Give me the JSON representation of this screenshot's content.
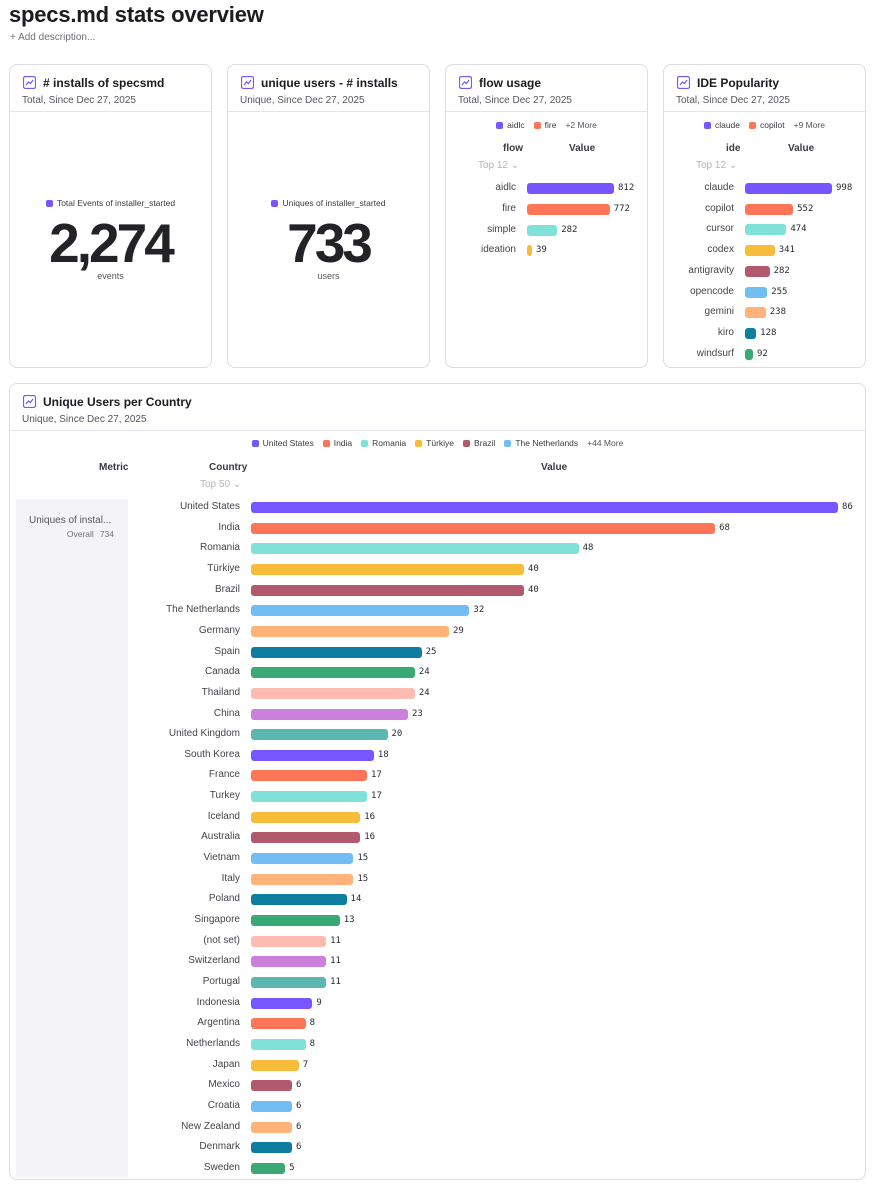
{
  "page": {
    "title": "specs.md stats overview",
    "add_description": "+ Add description..."
  },
  "colors": [
    "#7856ff",
    "#ff7557",
    "#80e1d9",
    "#f8bc3b",
    "#b2596e",
    "#72bef4",
    "#ffb27a",
    "#0d7ea0",
    "#3ba974",
    "#febbb2",
    "#cb80dc",
    "#5bb7af"
  ],
  "cards": {
    "installs": {
      "icon": "line-chart-icon",
      "title": "# installs of specsmd",
      "subtitle": "Total, Since Dec 27, 2025",
      "legend": "Total Events of installer_started",
      "value": "2,274",
      "unit": "events"
    },
    "unique_users": {
      "icon": "line-chart-icon",
      "title": "unique users - # installs",
      "subtitle": "Unique, Since Dec 27, 2025",
      "legend": "Uniques of installer_started",
      "value": "733",
      "unit": "users"
    },
    "flow": {
      "icon": "line-chart-icon",
      "title": "flow usage",
      "subtitle": "Total, Since Dec 27, 2025",
      "legend": [
        "aidlc",
        "fire"
      ],
      "legend_more": "+2 More",
      "col_label": "flow",
      "col_value": "Value",
      "topn": "Top 12 ⌄"
    },
    "ide": {
      "icon": "line-chart-icon",
      "title": "IDE Popularity",
      "subtitle": "Total, Since Dec 27, 2025",
      "legend": [
        "claude",
        "copilot"
      ],
      "legend_more": "+9 More",
      "col_label": "ide",
      "col_value": "Value",
      "topn": "Top 12 ⌄"
    },
    "country": {
      "icon": "line-chart-icon",
      "title": "Unique Users per Country",
      "subtitle": "Unique, Since Dec 27, 2025",
      "legend": [
        "United States",
        "India",
        "Romania",
        "Türkiye",
        "Brazil",
        "The Netherlands"
      ],
      "legend_more": "+44 More",
      "col_metric": "Metric",
      "col_label": "Country",
      "col_value": "Value",
      "topn": "Top 50 ⌄",
      "metric_name": "Uniques of instal...",
      "metric_overall_label": "Overall",
      "metric_overall_value": "734"
    }
  },
  "chart_data": [
    {
      "type": "bar",
      "orientation": "horizontal",
      "title": "flow usage",
      "categories": [
        "aidlc",
        "fire",
        "simple",
        "ideation"
      ],
      "values": [
        812,
        772,
        282,
        39
      ]
    },
    {
      "type": "bar",
      "orientation": "horizontal",
      "title": "IDE Popularity",
      "categories": [
        "claude",
        "copilot",
        "cursor",
        "codex",
        "antigravity",
        "opencode",
        "gemini",
        "kiro",
        "windsurf"
      ],
      "values": [
        998,
        552,
        474,
        341,
        282,
        255,
        238,
        128,
        92
      ]
    },
    {
      "type": "bar",
      "orientation": "horizontal",
      "title": "Unique Users per Country",
      "categories": [
        "United States",
        "India",
        "Romania",
        "Türkiye",
        "Brazil",
        "The Netherlands",
        "Germany",
        "Spain",
        "Canada",
        "Thailand",
        "China",
        "United Kingdom",
        "South Korea",
        "France",
        "Turkey",
        "Iceland",
        "Australia",
        "Vietnam",
        "Italy",
        "Poland",
        "Singapore",
        "(not set)",
        "Switzerland",
        "Portugal",
        "Indonesia",
        "Argentina",
        "Netherlands",
        "Japan",
        "Mexico",
        "Croatia",
        "New Zealand",
        "Denmark",
        "Sweden"
      ],
      "values": [
        86,
        68,
        48,
        40,
        40,
        32,
        29,
        25,
        24,
        24,
        23,
        20,
        18,
        17,
        17,
        16,
        16,
        15,
        15,
        14,
        13,
        11,
        11,
        11,
        9,
        8,
        8,
        7,
        6,
        6,
        6,
        6,
        5
      ]
    }
  ]
}
